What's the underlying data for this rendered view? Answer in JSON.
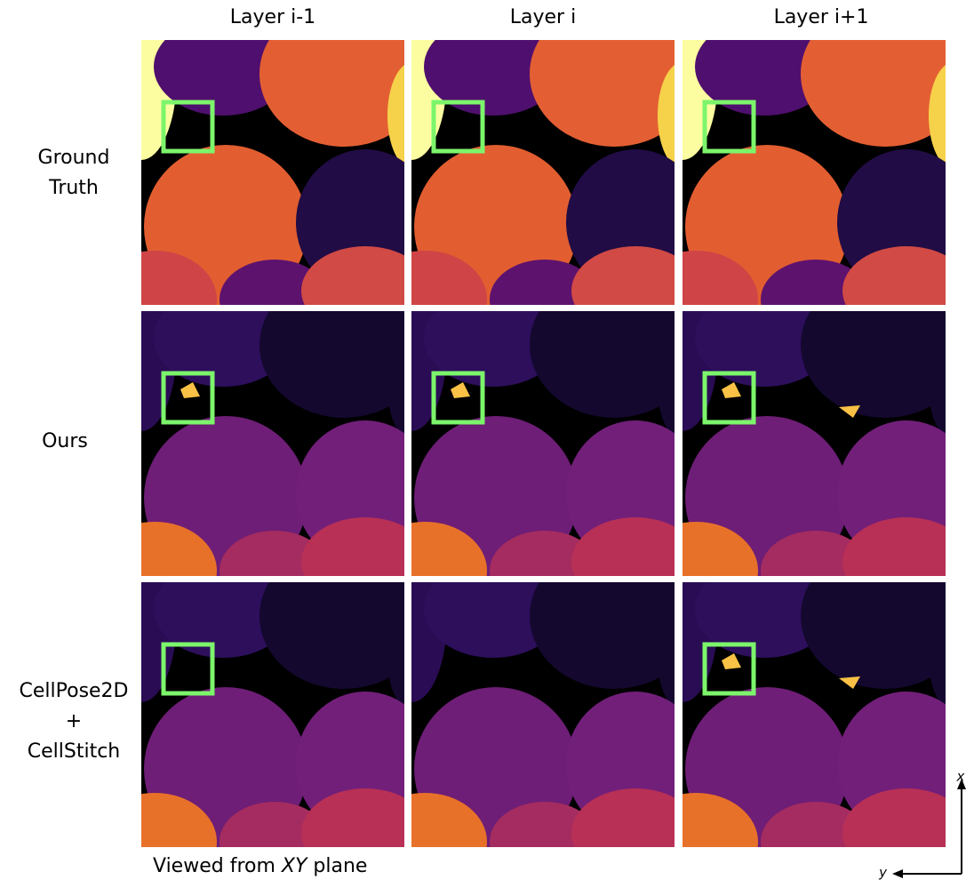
{
  "header": {
    "columns": [
      "Layer i-1",
      "Layer i",
      "Layer i+1"
    ]
  },
  "rows": [
    {
      "label": [
        "Ground",
        "Truth"
      ]
    },
    {
      "label": [
        "Ours"
      ]
    },
    {
      "label": [
        "CellPose2D",
        "+",
        "CellStitch"
      ]
    }
  ],
  "caption": {
    "prefix": "Viewed from",
    "italic": "XY",
    "suffix": "plane"
  },
  "axes": {
    "x": "x",
    "y": "y"
  }
}
